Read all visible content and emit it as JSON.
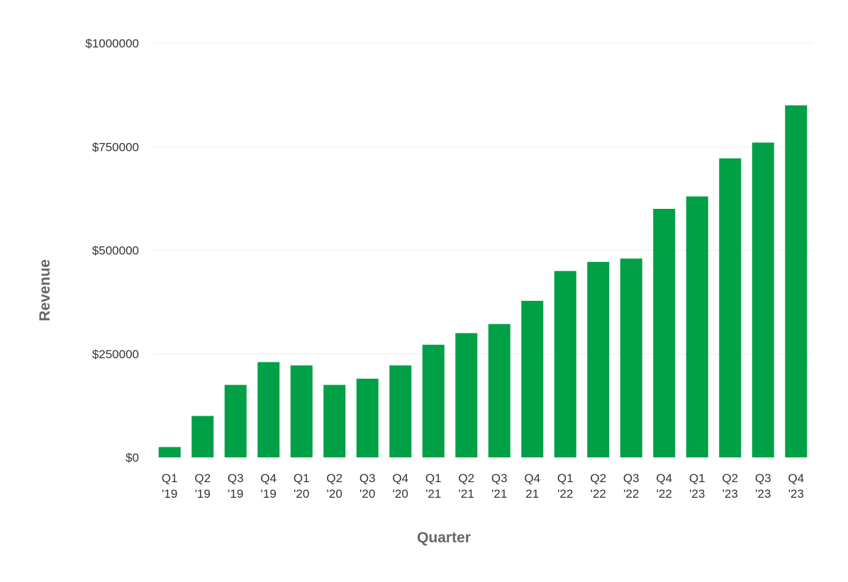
{
  "chart_data": {
    "type": "bar",
    "xlabel": "Quarter",
    "ylabel": "Revenue",
    "ylim": [
      0,
      1000000
    ],
    "yticks": [
      {
        "value": 0,
        "label": "$0"
      },
      {
        "value": 250000,
        "label": "$250000"
      },
      {
        "value": 500000,
        "label": "$500000"
      },
      {
        "value": 750000,
        "label": "$750000"
      },
      {
        "value": 1000000,
        "label": "$1000000"
      }
    ],
    "grid": true,
    "legend": "none",
    "bar_color": "#00a046",
    "categories": [
      [
        "Q1",
        "'19"
      ],
      [
        "Q2",
        "'19"
      ],
      [
        "Q3",
        "'19"
      ],
      [
        "Q4",
        "'19"
      ],
      [
        "Q1",
        "'20"
      ],
      [
        "Q2",
        "'20"
      ],
      [
        "Q3",
        "'20"
      ],
      [
        "Q4",
        "'20"
      ],
      [
        "Q1",
        "'21"
      ],
      [
        "Q2",
        "'21"
      ],
      [
        "Q3",
        "'21"
      ],
      [
        "Q4",
        "21"
      ],
      [
        "Q1",
        "'22"
      ],
      [
        "Q2",
        "'22"
      ],
      [
        "Q3",
        "'22"
      ],
      [
        "Q4",
        "'22"
      ],
      [
        "Q1",
        "'23"
      ],
      [
        "Q2",
        "'23"
      ],
      [
        "Q3",
        "'23"
      ],
      [
        "Q4",
        "'23"
      ]
    ],
    "values": [
      25000,
      100000,
      175000,
      230000,
      222000,
      175000,
      190000,
      222000,
      272000,
      300000,
      322000,
      378000,
      450000,
      472000,
      480000,
      600000,
      630000,
      722000,
      760000,
      850000
    ]
  }
}
